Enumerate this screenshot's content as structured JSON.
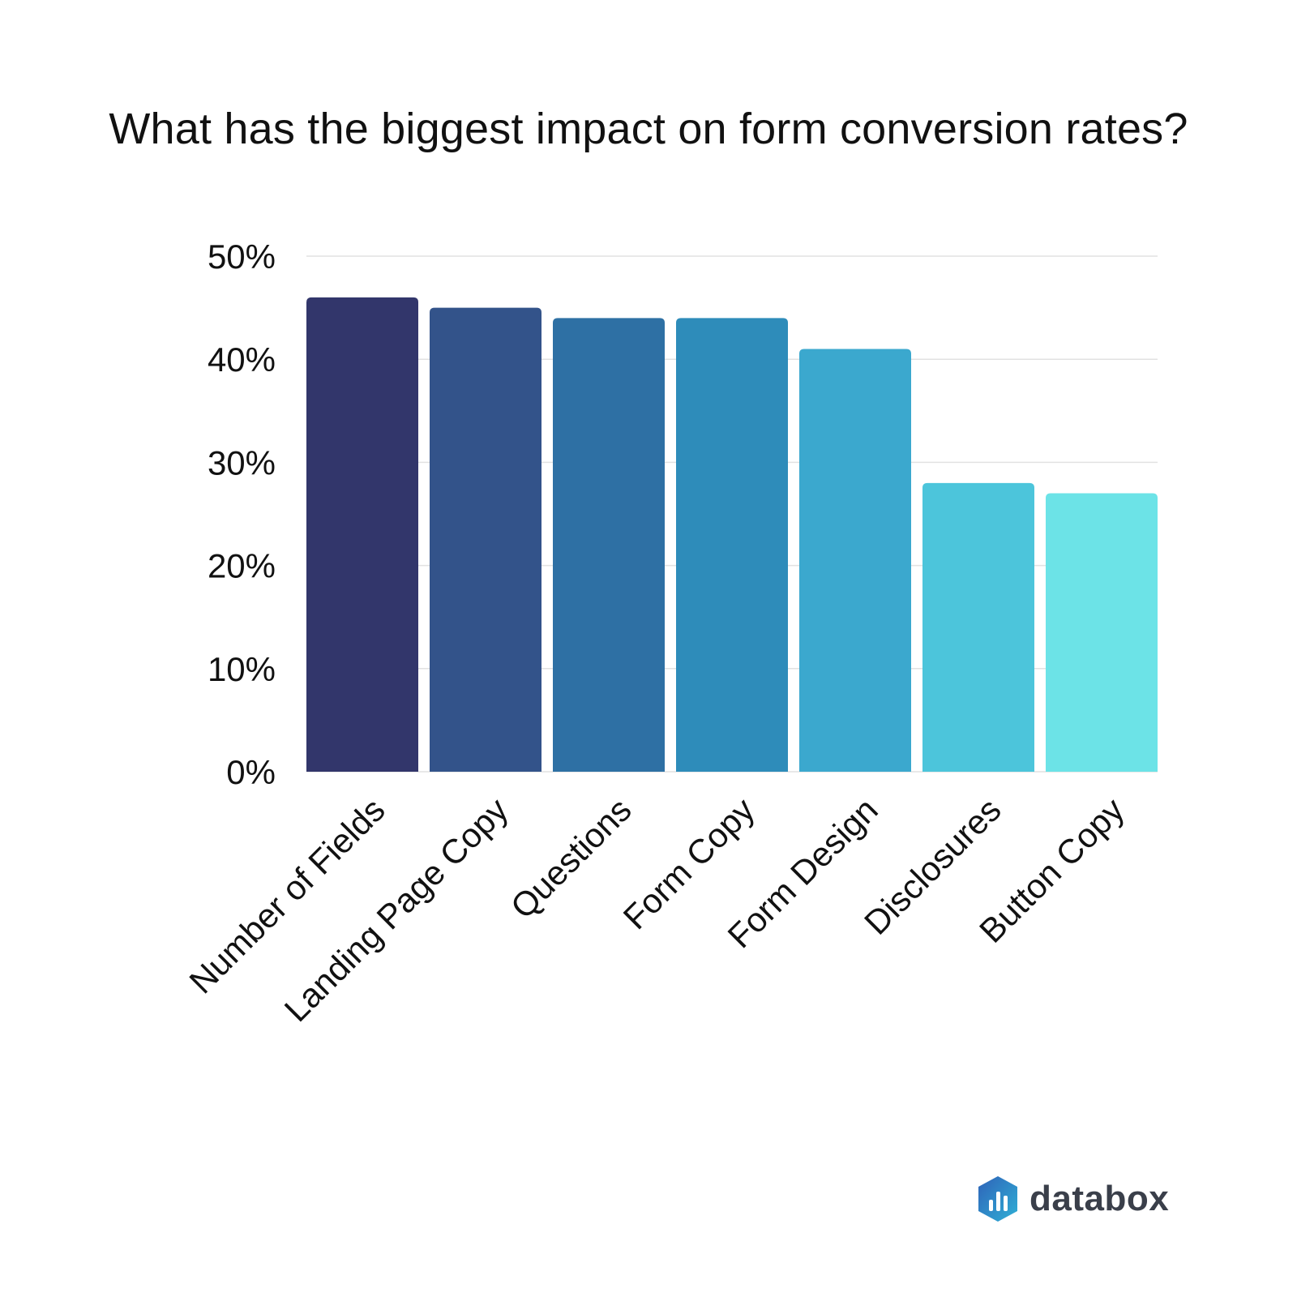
{
  "chart_data": {
    "type": "bar",
    "title": "What has the biggest impact on form conversion rates?",
    "xlabel": "",
    "ylabel": "",
    "ylim": [
      0,
      50
    ],
    "yticks": [
      0,
      10,
      20,
      30,
      40,
      50
    ],
    "ytick_labels": [
      "0%",
      "10%",
      "20%",
      "30%",
      "40%",
      "50%"
    ],
    "categories": [
      "Number of Fields",
      "Landing Page Copy",
      "Questions",
      "Form Copy",
      "Form Design",
      "Disclosures",
      "Button Copy"
    ],
    "values": [
      46,
      45,
      44,
      44,
      41,
      28,
      27
    ],
    "colors": [
      "#32366b",
      "#33538a",
      "#2e70a4",
      "#2e8cba",
      "#3ba8ce",
      "#4cc5db",
      "#6ce3e7"
    ],
    "grid": true,
    "legend": "none"
  },
  "brand": {
    "name": "databox",
    "colors": [
      "#2f62b8",
      "#2fb0d6"
    ]
  }
}
